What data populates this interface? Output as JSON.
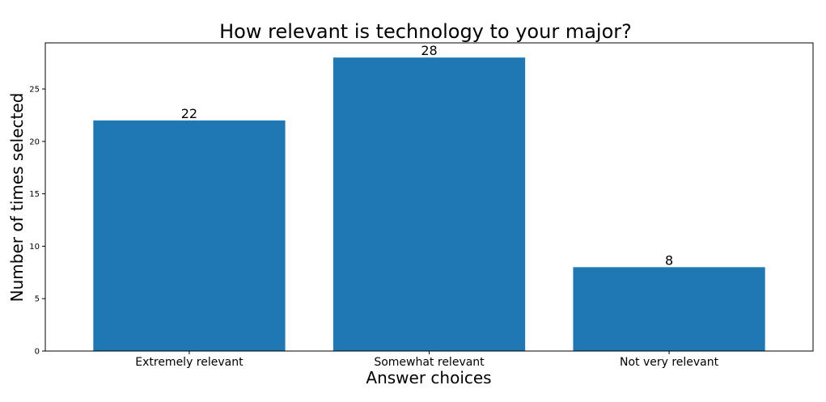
{
  "chart_data": {
    "type": "bar",
    "title": "How relevant is technology to your major?",
    "xlabel": "Answer choices",
    "ylabel": "Number of times selected",
    "categories": [
      "Extremely relevant",
      "Somewhat relevant",
      "Not very relevant"
    ],
    "values": [
      22,
      28,
      8
    ],
    "data_labels": [
      "22",
      "28",
      "8"
    ],
    "yticks": [
      0,
      5,
      10,
      15,
      20,
      25
    ],
    "ytick_labels": [
      "0",
      "5",
      "10",
      "15",
      "20",
      "25"
    ],
    "ylim": [
      0,
      29.4
    ],
    "grid": false,
    "bar_color": "#1f77b4"
  }
}
